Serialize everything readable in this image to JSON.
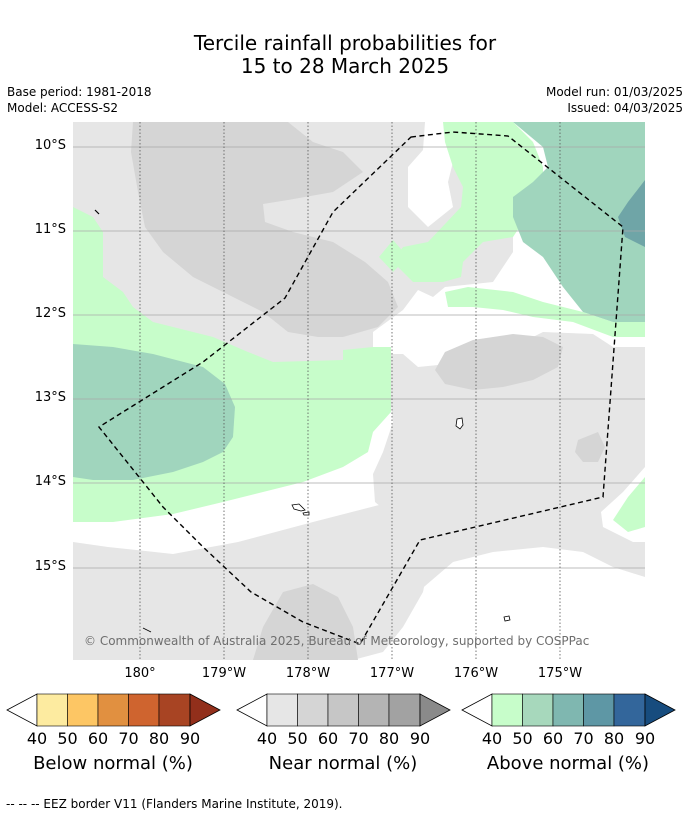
{
  "title": {
    "line1": "Tercile rainfall probabilities for",
    "line2": "15 to 28 March 2025"
  },
  "meta": {
    "base_period": "Base period: 1981-2018",
    "model": "Model: ACCESS-S2",
    "model_run": "Model run: 01/03/2025",
    "issued": "Issued: 04/03/2025"
  },
  "map": {
    "lat_labels": [
      "10°S",
      "11°S",
      "12°S",
      "13°S",
      "14°S",
      "15°S"
    ],
    "lon_labels": [
      "180°",
      "179°W",
      "178°W",
      "177°W",
      "176°W",
      "175°W"
    ],
    "copyright": "© Commonwealth of Australia 2025, Bureau of Meteorology, supported by COSPPac",
    "colors": {
      "near_40": "#e6e6e6",
      "near_50": "#d5d5d5",
      "above_40": "#c7fdca",
      "above_50": "#a0d5bd",
      "above_60": "#6fa5a7",
      "eez_border": "#000000"
    }
  },
  "colorbars": [
    {
      "title": "Below normal (%)",
      "ticks": [
        "40",
        "50",
        "60",
        "70",
        "80",
        "90"
      ],
      "colors": [
        "#ffffff",
        "#fdeba0",
        "#fdc664",
        "#e19040",
        "#cf642f",
        "#a84423",
        "#922f1b"
      ]
    },
    {
      "title": "Near normal (%)",
      "ticks": [
        "40",
        "50",
        "60",
        "70",
        "80",
        "90"
      ],
      "colors": [
        "#ffffff",
        "#e6e6e6",
        "#d5d5d5",
        "#c6c6c6",
        "#b4b4b4",
        "#a2a2a2",
        "#8a8a8a"
      ]
    },
    {
      "title": "Above normal (%)",
      "ticks": [
        "40",
        "50",
        "60",
        "70",
        "80",
        "90"
      ],
      "colors": [
        "#ffffff",
        "#c7fdca",
        "#a7d8bc",
        "#7fb7b0",
        "#5e97a5",
        "#33669b",
        "#174c7e"
      ]
    }
  ],
  "footer": "--  --  -- EEZ border V11 (Flanders Marine Institute, 2019)."
}
